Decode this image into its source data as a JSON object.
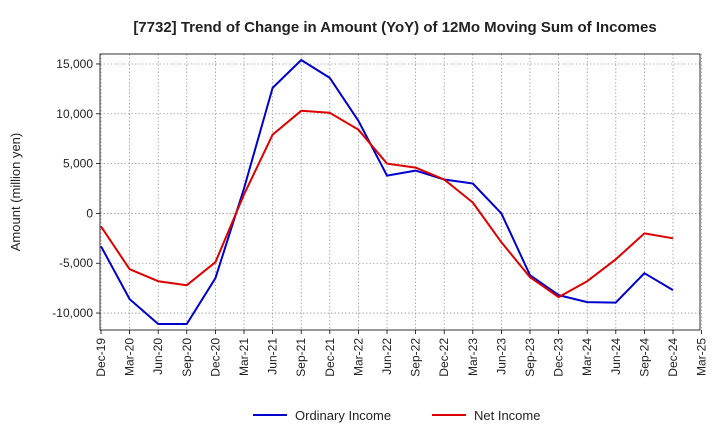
{
  "chart_data": {
    "type": "line",
    "title": "[7732]  Trend of Change in Amount (YoY) of 12Mo Moving Sum of Incomes",
    "xlabel": "",
    "ylabel": "Amount (million yen)",
    "ylim": [
      -11700,
      16000
    ],
    "yticks": [
      -10000,
      -5000,
      0,
      5000,
      10000,
      15000
    ],
    "ytick_labels": [
      "-10,000",
      "-5,000",
      "0",
      "5,000",
      "10,000",
      "15,000"
    ],
    "categories": [
      "Dec-19",
      "Mar-20",
      "Jun-20",
      "Sep-20",
      "Dec-20",
      "Mar-21",
      "Jun-21",
      "Sep-21",
      "Dec-21",
      "Mar-22",
      "Jun-22",
      "Sep-22",
      "Dec-22",
      "Mar-23",
      "Jun-23",
      "Sep-23",
      "Dec-23",
      "Mar-24",
      "Jun-24",
      "Sep-24",
      "Dec-24",
      "Mar-25"
    ],
    "grid": true,
    "legend_position": "bottom-center",
    "series": [
      {
        "name": "Ordinary Income",
        "color": "#0000cc",
        "values": [
          -3300,
          -8600,
          -11100,
          -11100,
          -6500,
          2500,
          12600,
          15400,
          13600,
          9300,
          3800,
          4300,
          3400,
          3000,
          0,
          -6200,
          -8200,
          -8900,
          -8950,
          -6000,
          -7700,
          null
        ]
      },
      {
        "name": "Net Income",
        "color": "#dd0000",
        "values": [
          -1300,
          -5600,
          -6800,
          -7200,
          -4900,
          1900,
          7900,
          10300,
          10100,
          8400,
          5000,
          4600,
          3400,
          1100,
          -2900,
          -6400,
          -8400,
          -6800,
          -4600,
          -2000,
          -2500,
          null
        ]
      }
    ]
  }
}
